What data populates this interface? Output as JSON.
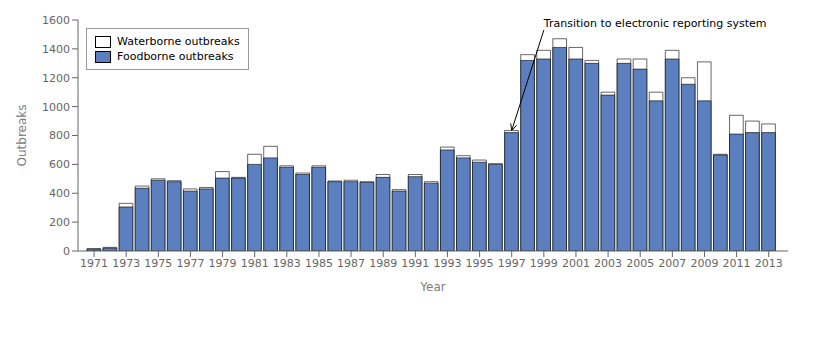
{
  "chart_data": {
    "type": "bar",
    "x": [
      1971,
      1972,
      1973,
      1974,
      1975,
      1976,
      1977,
      1978,
      1979,
      1980,
      1981,
      1982,
      1983,
      1984,
      1985,
      1986,
      1987,
      1988,
      1989,
      1990,
      1991,
      1992,
      1993,
      1994,
      1995,
      1996,
      1997,
      1998,
      1999,
      2000,
      2001,
      2002,
      2003,
      2004,
      2005,
      2006,
      2007,
      2008,
      2009,
      2010,
      2011,
      2012,
      2013
    ],
    "series": [
      {
        "name": "Waterborne outbreaks",
        "color": "#FFFFFF",
        "values": [
          16,
          25,
          330,
          450,
          500,
          487,
          430,
          440,
          550,
          510,
          670,
          725,
          590,
          540,
          590,
          485,
          490,
          480,
          530,
          425,
          530,
          480,
          720,
          660,
          630,
          605,
          835,
          1360,
          1390,
          1470,
          1410,
          1320,
          1100,
          1330,
          1330,
          1100,
          1390,
          1200,
          1310,
          670,
          940,
          900,
          880
        ]
      },
      {
        "name": "Foodborne outbreaks",
        "color": "#5B7FBF",
        "values": [
          14,
          20,
          305,
          435,
          490,
          480,
          415,
          430,
          505,
          505,
          600,
          645,
          580,
          530,
          580,
          480,
          480,
          475,
          510,
          415,
          515,
          470,
          700,
          645,
          615,
          600,
          820,
          1320,
          1330,
          1410,
          1330,
          1300,
          1080,
          1300,
          1260,
          1040,
          1330,
          1155,
          1040,
          665,
          810,
          820,
          820
        ]
      }
    ],
    "x_label": "Year",
    "y_label": "Outbreaks",
    "xlim": [
      1970.0,
      2014.2
    ],
    "xticks": [
      1971,
      1973,
      1975,
      1977,
      1979,
      1981,
      1983,
      1985,
      1987,
      1989,
      1991,
      1993,
      1995,
      1997,
      1999,
      2001,
      2003,
      2005,
      2007,
      2009,
      2011,
      2013
    ],
    "ylim": [
      0,
      1600
    ],
    "yticks": [
      0,
      200,
      400,
      600,
      800,
      1000,
      1200,
      1400,
      1600
    ],
    "stacked": false,
    "grid": false,
    "legend": "upper left",
    "annotations": [
      {
        "text": "Transition to electronic reporting system",
        "x": 1997,
        "y": 835,
        "text_x": 1999,
        "text_y": 1530
      }
    ]
  }
}
